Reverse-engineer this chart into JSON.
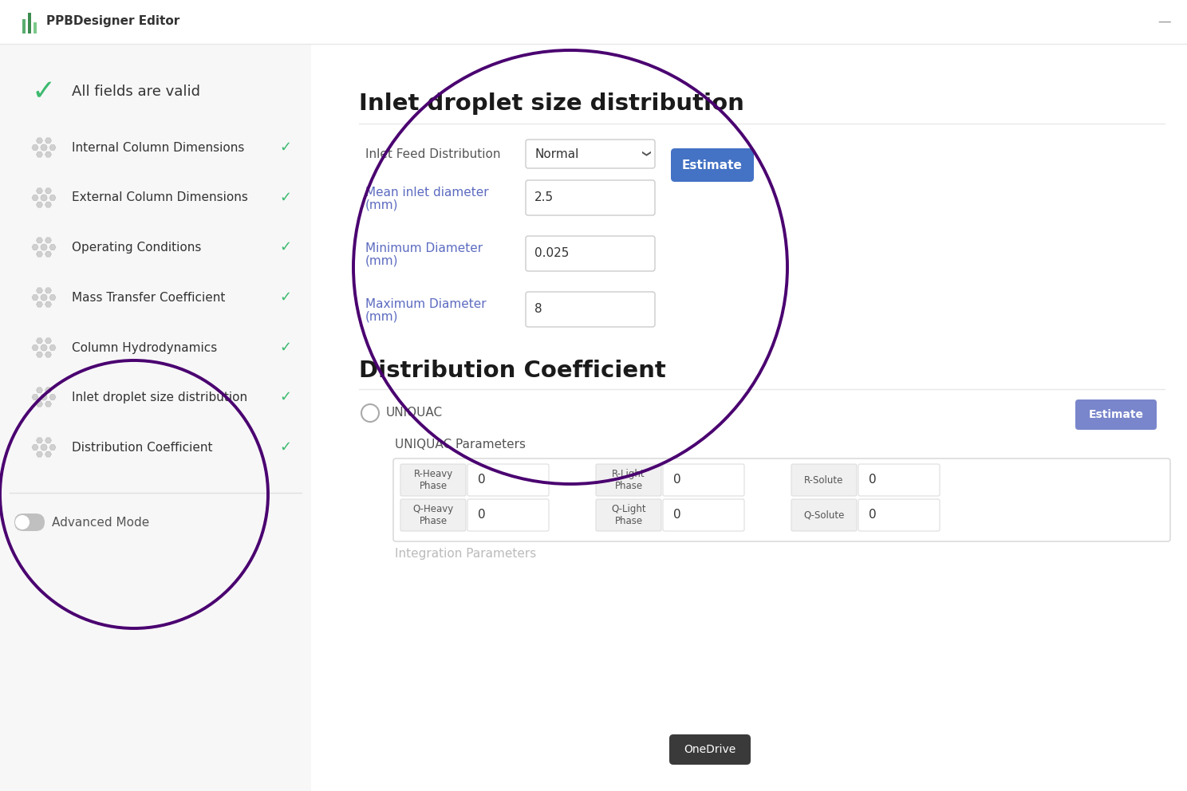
{
  "bg_color": "#ffffff",
  "sidebar_bg": "#f7f7f7",
  "header_text": "PPBDesigner Editor",
  "sidebar_items": [
    "Internal Column Dimensions",
    "External Column Dimensions",
    "Operating Conditions",
    "Mass Transfer Coefficient",
    "Column Hydrodynamics",
    "Inlet droplet size distribution",
    "Distribution Coefficient"
  ],
  "advanced_mode_text": "Advanced Mode",
  "main_section_title": "Inlet droplet size distribution",
  "main_section_title2": "Distribution Coefficient",
  "field1_label": "Inlet Feed Distribution",
  "field1_value": "Normal",
  "field2_label1": "Mean inlet diameter",
  "field2_label2": "(mm)",
  "field2_value": "2.5",
  "field3_label1": "Minimum Diameter",
  "field3_label2": "(mm)",
  "field3_value": "0.025",
  "field4_label1": "Maximum Diameter",
  "field4_label2": "(mm)",
  "field4_value": "8",
  "estimate_btn_text": "Estimate",
  "estimate_btn_color": "#4472c4",
  "estimate_btn2_color": "#7986cb",
  "uniquac_text": "UNIQUAC",
  "uniquac_params_text": "UNIQUAC Parameters",
  "circle1_color": "#4a0070",
  "circle2_color": "#4a0070",
  "check_green": "#3dba6f",
  "onedrive_btn_text": "OneDrive",
  "integration_params_text": "Integration Parameters",
  "icon_color": "#cccccc",
  "label_blue": "#5c6bc0",
  "text_dark": "#333333",
  "text_gray": "#777777"
}
